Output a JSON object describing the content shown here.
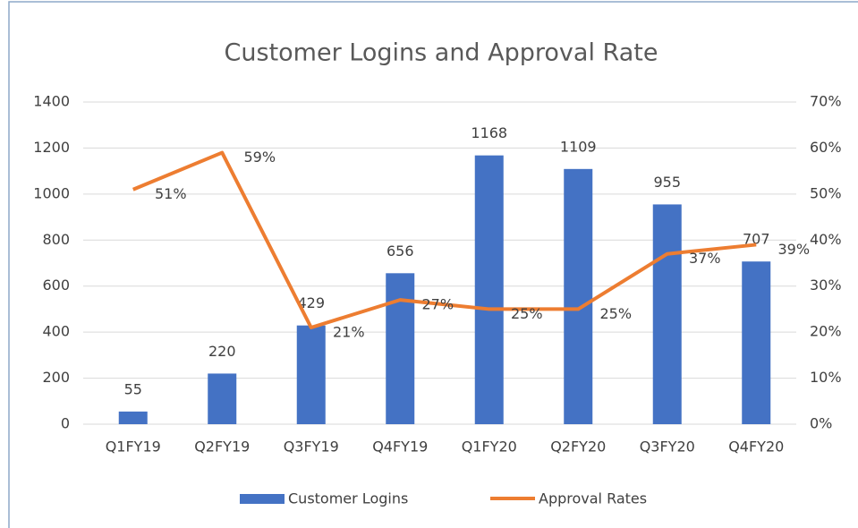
{
  "chart_data": {
    "type": "combo",
    "title": "Customer Logins and Approval Rate",
    "categories": [
      "Q1FY19",
      "Q2FY19",
      "Q3FY19",
      "Q4FY19",
      "Q1FY20",
      "Q2FY20",
      "Q3FY20",
      "Q4FY20"
    ],
    "series": [
      {
        "name": "Customer Logins",
        "type": "bar",
        "color": "#4472c4",
        "values": [
          55,
          220,
          429,
          656,
          1168,
          1109,
          955,
          707
        ]
      },
      {
        "name": "Approval Rates",
        "type": "line",
        "axis": "y2",
        "color": "#ed7d31",
        "values": [
          51,
          59,
          21,
          27,
          25,
          25,
          37,
          39
        ],
        "value_labels": [
          "51%",
          "59%",
          "21%",
          "27%",
          "25%",
          "25%",
          "37%",
          "39%"
        ]
      }
    ],
    "ylim": [
      0,
      1400
    ],
    "yticks": [
      0,
      200,
      400,
      600,
      800,
      1000,
      1200,
      1400
    ],
    "y2lim": [
      0,
      70
    ],
    "y2ticks": [
      {
        "value": 0,
        "label": "0%"
      },
      {
        "value": 10,
        "label": "10%"
      },
      {
        "value": 20,
        "label": "20%"
      },
      {
        "value": 30,
        "label": "30%"
      },
      {
        "value": 40,
        "label": "40%"
      },
      {
        "value": 50,
        "label": "50%"
      },
      {
        "value": 60,
        "label": "60%"
      },
      {
        "value": 70,
        "label": "70%"
      }
    ],
    "grid": true,
    "legend": "bottom"
  }
}
